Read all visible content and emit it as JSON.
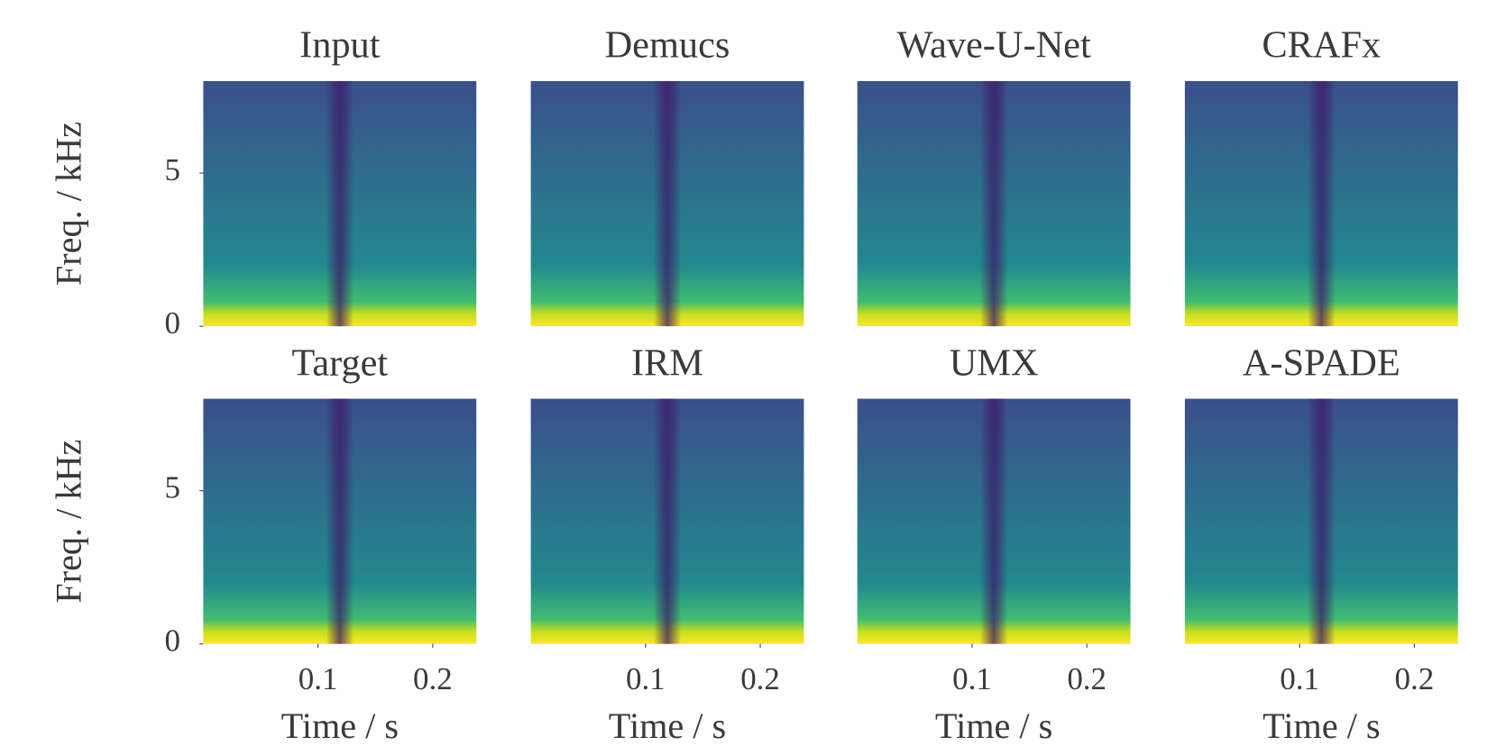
{
  "chart_data": [
    {
      "type": "spectrogram",
      "title": "Input",
      "ylabel": "Freq. / kHz",
      "xlim": [
        0,
        0.238
      ],
      "ylim": [
        0,
        8
      ],
      "yticks": [
        0,
        5
      ]
    },
    {
      "type": "spectrogram",
      "title": "Demucs",
      "xlim": [
        0,
        0.238
      ],
      "ylim": [
        0,
        8
      ]
    },
    {
      "type": "spectrogram",
      "title": "Wave-U-Net",
      "xlim": [
        0,
        0.238
      ],
      "ylim": [
        0,
        8
      ]
    },
    {
      "type": "spectrogram",
      "title": "CRAFx",
      "xlim": [
        0,
        0.238
      ],
      "ylim": [
        0,
        8
      ]
    },
    {
      "type": "spectrogram",
      "title": "Target",
      "ylabel": "Freq. / kHz",
      "xlabel": "Time / s",
      "xlim": [
        0,
        0.238
      ],
      "ylim": [
        0,
        8
      ],
      "xticks": [
        0.1,
        0.2
      ],
      "yticks": [
        0,
        5
      ]
    },
    {
      "type": "spectrogram",
      "title": "IRM",
      "xlabel": "Time / s",
      "xlim": [
        0,
        0.238
      ],
      "ylim": [
        0,
        8
      ],
      "xticks": [
        0.1,
        0.2
      ]
    },
    {
      "type": "spectrogram",
      "title": "UMX",
      "xlabel": "Time / s",
      "xlim": [
        0,
        0.238
      ],
      "ylim": [
        0,
        8
      ],
      "xticks": [
        0.1,
        0.2
      ]
    },
    {
      "type": "spectrogram",
      "title": "A-SPADE",
      "xlabel": "Time / s",
      "xlim": [
        0,
        0.238
      ],
      "ylim": [
        0,
        8
      ],
      "xticks": [
        0.1,
        0.2
      ]
    }
  ]
}
